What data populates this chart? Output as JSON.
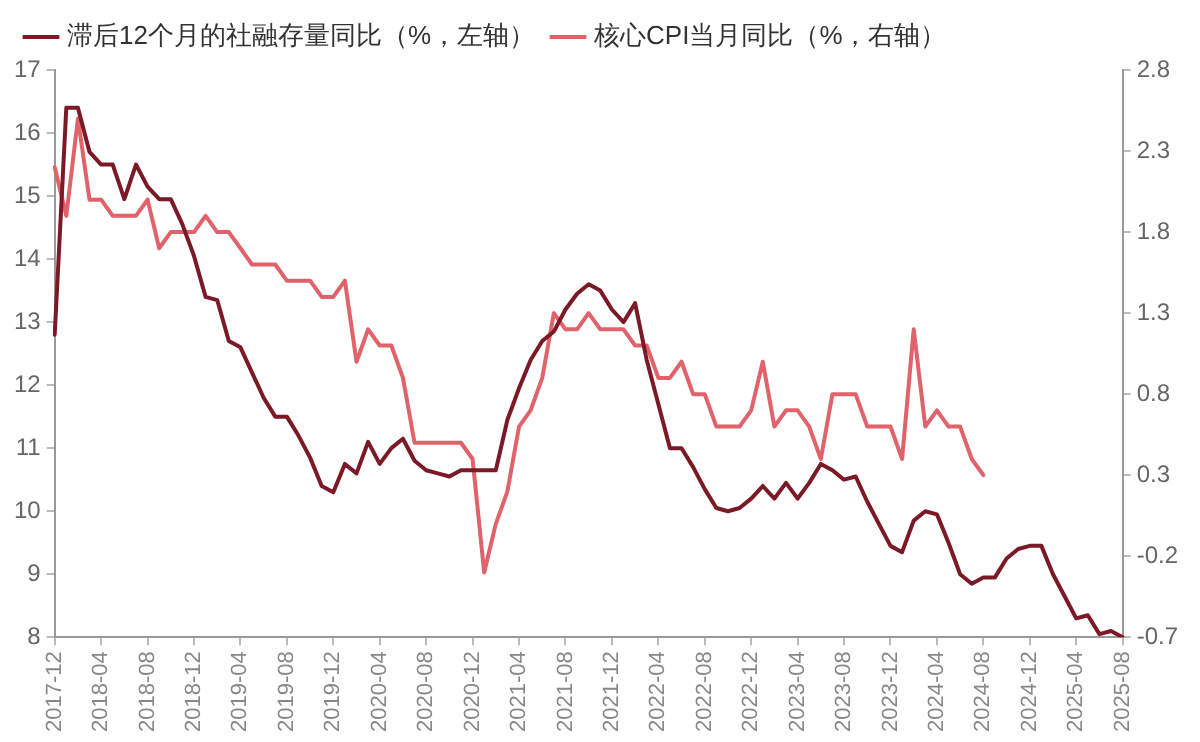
{
  "chart_data": {
    "type": "line",
    "legend": "top",
    "marker": "none",
    "line_style": "solid",
    "categories": [
      "2017-12",
      null,
      null,
      null,
      "2018-04",
      null,
      null,
      null,
      "2018-08",
      null,
      null,
      null,
      "2018-12",
      null,
      null,
      null,
      "2019-04",
      null,
      null,
      null,
      "2019-08",
      null,
      null,
      null,
      "2019-12",
      null,
      null,
      null,
      "2020-04",
      null,
      null,
      null,
      "2020-08",
      null,
      null,
      null,
      "2020-12",
      null,
      null,
      null,
      "2021-04",
      null,
      null,
      null,
      "2021-08",
      null,
      null,
      null,
      "2021-12",
      null,
      null,
      null,
      "2022-04",
      null,
      null,
      null,
      "2022-08",
      null,
      null,
      null,
      "2022-12",
      null,
      null,
      null,
      "2023-04",
      null,
      null,
      null,
      "2023-08",
      null,
      null,
      null,
      "2023-12",
      null,
      null,
      null,
      "2024-04",
      null,
      null,
      null,
      "2024-08",
      null,
      null,
      null,
      "2024-12",
      null,
      null,
      null,
      "2025-04",
      null,
      null,
      null,
      "2025-08"
    ],
    "series": [
      {
        "name": "滞后12个月的社融存量同比（%，左轴）",
        "color": "#7b1a26",
        "axis": "y",
        "values": [
          12.8,
          16.4,
          16.4,
          15.7,
          15.5,
          15.5,
          14.95,
          15.5,
          15.15,
          14.95,
          14.95,
          14.55,
          14.05,
          13.4,
          13.35,
          12.7,
          12.6,
          12.2,
          11.8,
          11.5,
          11.5,
          11.2,
          10.85,
          10.4,
          10.3,
          10.75,
          10.6,
          11.1,
          10.75,
          11.0,
          11.15,
          10.8,
          10.65,
          10.6,
          10.55,
          10.65,
          10.65,
          10.65,
          10.65,
          11.45,
          11.95,
          12.4,
          12.7,
          12.85,
          13.2,
          13.45,
          13.6,
          13.5,
          13.2,
          13.0,
          13.3,
          12.4,
          11.7,
          11.0,
          11.0,
          10.7,
          10.35,
          10.05,
          10.0,
          10.05,
          10.2,
          10.4,
          10.2,
          10.45,
          10.2,
          10.45,
          10.75,
          10.65,
          10.5,
          10.55,
          10.15,
          9.8,
          9.45,
          9.35,
          9.85,
          10.0,
          9.95,
          9.5,
          9.0,
          8.85,
          8.95,
          8.95,
          9.25,
          9.4,
          9.45,
          9.45,
          9.0,
          8.65,
          8.3,
          8.35,
          8.05,
          8.1,
          8.0
        ]
      },
      {
        "name": "核心CPI当月同比（%，右轴）",
        "color": "#e0636b",
        "axis": "y2",
        "values": [
          2.2,
          1.9,
          2.5,
          2.0,
          2.0,
          1.9,
          1.9,
          1.9,
          2.0,
          1.7,
          1.8,
          1.8,
          1.8,
          1.9,
          1.8,
          1.8,
          1.7,
          1.6,
          1.6,
          1.6,
          1.5,
          1.5,
          1.5,
          1.4,
          1.4,
          1.5,
          1.0,
          1.2,
          1.1,
          1.1,
          0.9,
          0.5,
          0.5,
          0.5,
          0.5,
          0.5,
          0.4,
          -0.3,
          0.0,
          0.2,
          0.6,
          0.7,
          0.9,
          1.3,
          1.2,
          1.2,
          1.3,
          1.2,
          1.2,
          1.2,
          1.1,
          1.1,
          0.9,
          0.9,
          1.0,
          0.8,
          0.8,
          0.6,
          0.6,
          0.6,
          0.7,
          1.0,
          0.6,
          0.7,
          0.7,
          0.6,
          0.4,
          0.8,
          0.8,
          0.8,
          0.6,
          0.6,
          0.6,
          0.4,
          1.2,
          0.6,
          0.7,
          0.6,
          0.6,
          0.4,
          0.3,
          null,
          null,
          null,
          null,
          null,
          null,
          null,
          null,
          null,
          null,
          null,
          null
        ]
      }
    ],
    "ylim": [
      8,
      17
    ],
    "yticks": [
      8,
      9,
      10,
      11,
      12,
      13,
      14,
      15,
      16,
      17
    ],
    "y2lim": [
      -0.7,
      2.8
    ],
    "y2ticks": [
      -0.7,
      -0.2,
      0.3,
      0.8,
      1.3,
      1.8,
      2.3,
      2.8
    ]
  }
}
